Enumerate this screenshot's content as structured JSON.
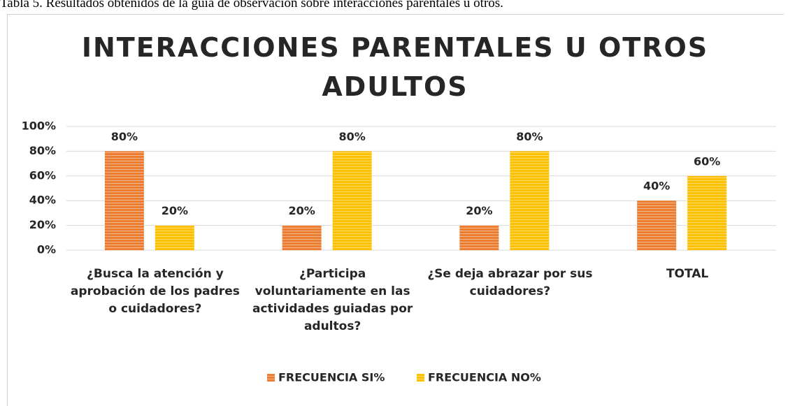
{
  "caption": "Tabla 5. Resultados obtenidos de la guía de observación sobre interacciones parentales u otros.",
  "chart_data": {
    "type": "bar",
    "title": "INTERACCIONES PARENTALES U OTROS ADULTOS",
    "categories": [
      "¿Busca la atención y aprobación de los padres o cuidadores?",
      "¿Participa voluntariamente en las actividades guiadas por adultos?",
      "¿Se deja abrazar por sus cuidadores?",
      "TOTAL"
    ],
    "series": [
      {
        "name": "FRECUENCIA  SI%",
        "color": "#ed7d31",
        "values": [
          80,
          20,
          20,
          40
        ],
        "value_labels": [
          "80%",
          "20%",
          "20%",
          "40%"
        ]
      },
      {
        "name": "FRECUENCIA  NO%",
        "color": "#ffc000",
        "values": [
          20,
          80,
          80,
          60
        ],
        "value_labels": [
          "20%",
          "80%",
          "80%",
          "60%"
        ]
      }
    ],
    "ylim": [
      0,
      100
    ],
    "yticks": [
      {
        "value": 0,
        "label": "0%"
      },
      {
        "value": 20,
        "label": "20%"
      },
      {
        "value": 40,
        "label": "40%"
      },
      {
        "value": 60,
        "label": "60%"
      },
      {
        "value": 80,
        "label": "80%"
      },
      {
        "value": 100,
        "label": "100%"
      }
    ],
    "grid": true,
    "legend": "bottom"
  }
}
